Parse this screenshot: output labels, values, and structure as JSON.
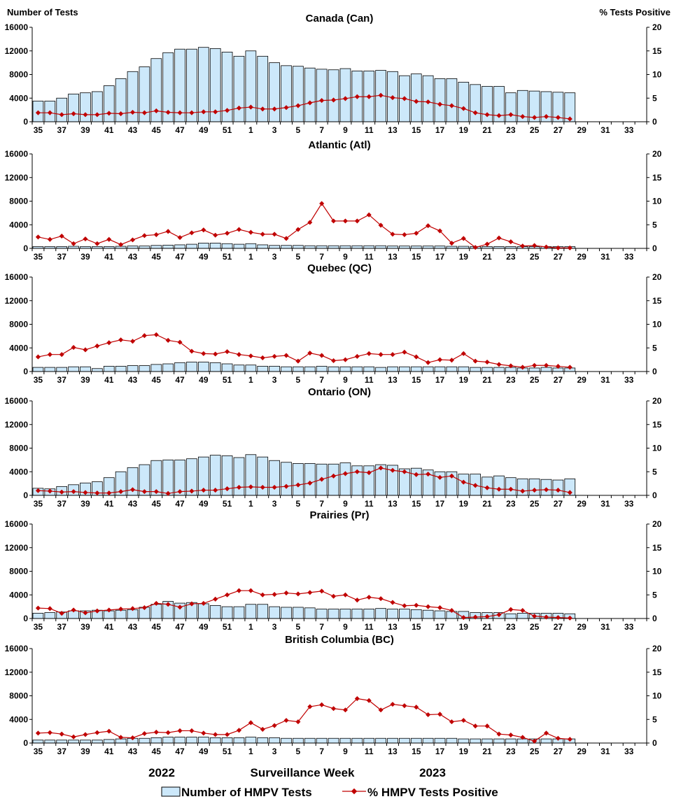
{
  "left_axis_title": "Number of Tests",
  "right_axis_title": "%  Tests Positive",
  "x_title": "Surveillance Week",
  "year_labels": [
    "2022",
    "2023"
  ],
  "legend": {
    "bars": "Number of HMPV Tests",
    "line": "% HMPV Tests Positive"
  },
  "colors": {
    "bar_fill": "#CCE8FA",
    "bar_stroke": "#000000",
    "line": "#C00000"
  },
  "chart_data": [
    {
      "type": "bar+line",
      "title": "Canada (Can)",
      "weeks": [
        35,
        36,
        37,
        38,
        39,
        40,
        41,
        42,
        43,
        44,
        45,
        46,
        47,
        48,
        49,
        50,
        51,
        52,
        1,
        2,
        3,
        4,
        5,
        6,
        7,
        8,
        9,
        10,
        11,
        12,
        13,
        14,
        15,
        16,
        17,
        18,
        19,
        20,
        21,
        22,
        23,
        24,
        25,
        26,
        27,
        28
      ],
      "week_ticks": [
        "35",
        "37",
        "39",
        "41",
        "43",
        "45",
        "47",
        "49",
        "51",
        "1",
        "3",
        "5",
        "7",
        "9",
        "11",
        "13",
        "15",
        "17",
        "19",
        "21",
        "23",
        "25",
        "27",
        "29",
        "31",
        "33"
      ],
      "y_left": [
        0,
        4000,
        8000,
        12000,
        16000
      ],
      "y_right": [
        0,
        5,
        10,
        15,
        20
      ],
      "tests": [
        3500,
        3500,
        4000,
        4700,
        4900,
        5100,
        6100,
        7300,
        8500,
        9300,
        10700,
        11700,
        12300,
        12300,
        12600,
        12400,
        11800,
        11100,
        12000,
        11100,
        10000,
        9500,
        9400,
        9100,
        8900,
        8800,
        9000,
        8600,
        8600,
        8700,
        8500,
        7800,
        8100,
        7800,
        7300,
        7300,
        6700,
        6300,
        6000,
        6000,
        4900,
        5300,
        5200,
        5100,
        5000,
        4900
      ],
      "percent": [
        1.9,
        1.9,
        1.5,
        1.7,
        1.5,
        1.5,
        1.8,
        1.7,
        2.0,
        1.9,
        2.3,
        2.0,
        1.9,
        1.9,
        2.1,
        2.1,
        2.4,
        2.9,
        3.1,
        2.7,
        2.7,
        3.0,
        3.4,
        4.0,
        4.5,
        4.6,
        4.9,
        5.3,
        5.3,
        5.6,
        5.1,
        4.9,
        4.3,
        4.2,
        3.7,
        3.4,
        2.8,
        1.9,
        1.5,
        1.3,
        1.5,
        1.1,
        0.9,
        1.1,
        0.9,
        0.6
      ]
    },
    {
      "type": "bar+line",
      "title": "Atlantic (Atl)",
      "weeks": [
        35,
        36,
        37,
        38,
        39,
        40,
        41,
        42,
        43,
        44,
        45,
        46,
        47,
        48,
        49,
        50,
        51,
        52,
        1,
        2,
        3,
        4,
        5,
        6,
        7,
        8,
        9,
        10,
        11,
        12,
        13,
        14,
        15,
        16,
        17,
        18,
        19,
        20,
        21,
        22,
        23,
        24,
        25,
        26,
        27,
        28
      ],
      "week_ticks": [
        "35",
        "37",
        "39",
        "41",
        "43",
        "45",
        "47",
        "49",
        "51",
        "1",
        "3",
        "5",
        "7",
        "9",
        "11",
        "13",
        "15",
        "17",
        "19",
        "21",
        "23",
        "25",
        "27",
        "29",
        "31",
        "33"
      ],
      "y_left": [
        0,
        4000,
        8000,
        12000,
        16000
      ],
      "y_right": [
        0,
        5,
        10,
        15,
        20
      ],
      "tests": [
        300,
        300,
        300,
        350,
        300,
        300,
        300,
        350,
        400,
        400,
        500,
        550,
        600,
        700,
        900,
        900,
        800,
        700,
        800,
        600,
        500,
        500,
        500,
        450,
        450,
        450,
        450,
        450,
        450,
        450,
        400,
        400,
        400,
        400,
        400,
        350,
        350,
        300,
        300,
        300,
        300,
        300,
        300,
        300,
        300,
        300
      ],
      "percent": [
        2.4,
        1.9,
        2.6,
        1.0,
        2.0,
        1.0,
        1.9,
        0.8,
        1.8,
        2.7,
        2.9,
        3.6,
        2.3,
        3.3,
        3.9,
        2.8,
        3.2,
        4.0,
        3.4,
        3.0,
        3.0,
        2.1,
        4.0,
        5.5,
        9.5,
        5.8,
        5.8,
        5.8,
        7.1,
        4.9,
        3.0,
        2.9,
        3.2,
        4.8,
        3.7,
        1.1,
        2.1,
        0.2,
        0.9,
        2.2,
        1.4,
        0.5,
        0.6,
        0.3,
        0.1,
        0.1
      ]
    },
    {
      "type": "bar+line",
      "title": "Quebec (QC)",
      "weeks": [
        35,
        36,
        37,
        38,
        39,
        40,
        41,
        42,
        43,
        44,
        45,
        46,
        47,
        48,
        49,
        50,
        51,
        52,
        1,
        2,
        3,
        4,
        5,
        6,
        7,
        8,
        9,
        10,
        11,
        12,
        13,
        14,
        15,
        16,
        17,
        18,
        19,
        20,
        21,
        22,
        23,
        24,
        25,
        26,
        27,
        28
      ],
      "week_ticks": [
        "35",
        "37",
        "39",
        "41",
        "43",
        "45",
        "47",
        "49",
        "51",
        "1",
        "3",
        "5",
        "7",
        "9",
        "11",
        "13",
        "15",
        "17",
        "19",
        "21",
        "23",
        "25",
        "27",
        "29",
        "31",
        "33"
      ],
      "y_left": [
        0,
        4000,
        8000,
        12000,
        16000
      ],
      "y_right": [
        0,
        5,
        10,
        15,
        20
      ],
      "tests": [
        700,
        700,
        700,
        800,
        800,
        500,
        900,
        900,
        1000,
        1000,
        1200,
        1300,
        1500,
        1600,
        1600,
        1500,
        1300,
        1100,
        1100,
        900,
        900,
        800,
        800,
        800,
        900,
        800,
        800,
        800,
        800,
        700,
        800,
        800,
        800,
        800,
        800,
        800,
        800,
        700,
        700,
        700,
        700,
        600,
        600,
        700,
        600,
        600
      ],
      "percent": [
        3.1,
        3.6,
        3.6,
        5.1,
        4.6,
        5.4,
        6.1,
        6.7,
        6.4,
        7.6,
        7.8,
        6.6,
        6.2,
        4.3,
        3.8,
        3.7,
        4.2,
        3.6,
        3.3,
        2.9,
        3.2,
        3.4,
        2.2,
        3.9,
        3.4,
        2.3,
        2.5,
        3.2,
        3.8,
        3.6,
        3.6,
        4.1,
        3.1,
        1.9,
        2.5,
        2.4,
        3.8,
        2.2,
        2.0,
        1.5,
        1.2,
        0.9,
        1.3,
        1.3,
        1.1,
        0.9
      ]
    },
    {
      "type": "bar+line",
      "title": "Ontario (ON)",
      "weeks": [
        35,
        36,
        37,
        38,
        39,
        40,
        41,
        42,
        43,
        44,
        45,
        46,
        47,
        48,
        49,
        50,
        51,
        52,
        1,
        2,
        3,
        4,
        5,
        6,
        7,
        8,
        9,
        10,
        11,
        12,
        13,
        14,
        15,
        16,
        17,
        18,
        19,
        20,
        21,
        22,
        23,
        24,
        25,
        26,
        27,
        28
      ],
      "week_ticks": [
        "35",
        "37",
        "39",
        "41",
        "43",
        "45",
        "47",
        "49",
        "51",
        "1",
        "3",
        "5",
        "7",
        "9",
        "11",
        "13",
        "15",
        "17",
        "19",
        "21",
        "23",
        "25",
        "27",
        "29",
        "31",
        "33"
      ],
      "y_left": [
        0,
        4000,
        8000,
        12000,
        16000
      ],
      "y_right": [
        0,
        5,
        10,
        15,
        20
      ],
      "tests": [
        1200,
        1100,
        1500,
        1800,
        2100,
        2300,
        3000,
        4000,
        4700,
        5200,
        5900,
        6000,
        6000,
        6200,
        6500,
        6800,
        6700,
        6400,
        6900,
        6500,
        5900,
        5600,
        5400,
        5400,
        5300,
        5300,
        5500,
        5000,
        5000,
        5200,
        5100,
        4500,
        4600,
        4300,
        4000,
        4000,
        3600,
        3600,
        3100,
        3300,
        3000,
        2800,
        2800,
        2700,
        2600,
        2800
      ],
      "percent": [
        1.0,
        0.9,
        0.7,
        0.8,
        0.6,
        0.5,
        0.5,
        0.8,
        1.2,
        0.8,
        0.8,
        0.4,
        0.8,
        0.9,
        1.1,
        1.1,
        1.4,
        1.7,
        1.8,
        1.7,
        1.7,
        1.9,
        2.2,
        2.6,
        3.4,
        4.1,
        4.6,
        5.0,
        4.8,
        5.8,
        5.3,
        5.0,
        4.4,
        4.5,
        3.8,
        4.1,
        2.8,
        2.1,
        1.6,
        1.3,
        1.3,
        0.9,
        1.1,
        1.2,
        1.1,
        0.6
      ]
    },
    {
      "type": "bar+line",
      "title": "Prairies (Pr)",
      "weeks": [
        35,
        36,
        37,
        38,
        39,
        40,
        41,
        42,
        43,
        44,
        45,
        46,
        47,
        48,
        49,
        50,
        51,
        52,
        1,
        2,
        3,
        4,
        5,
        6,
        7,
        8,
        9,
        10,
        11,
        12,
        13,
        14,
        15,
        16,
        17,
        18,
        19,
        20,
        21,
        22,
        23,
        24,
        25,
        26,
        27,
        28
      ],
      "week_ticks": [
        "35",
        "37",
        "39",
        "41",
        "43",
        "45",
        "47",
        "49",
        "51",
        "1",
        "3",
        "5",
        "7",
        "9",
        "11",
        "13",
        "15",
        "17",
        "19",
        "21",
        "23",
        "25",
        "27",
        "29",
        "31",
        "33"
      ],
      "y_left": [
        0,
        4000,
        8000,
        12000,
        16000
      ],
      "y_right": [
        0,
        5,
        10,
        15,
        20
      ],
      "tests": [
        900,
        1000,
        1100,
        1300,
        1300,
        1400,
        1300,
        1400,
        1500,
        1900,
        2400,
        2900,
        2600,
        2700,
        2500,
        2200,
        2000,
        2000,
        2400,
        2400,
        2000,
        1900,
        1900,
        1800,
        1600,
        1600,
        1600,
        1600,
        1600,
        1700,
        1600,
        1600,
        1500,
        1400,
        1300,
        1200,
        1200,
        1000,
        1000,
        1000,
        800,
        900,
        900,
        900,
        900,
        800
      ],
      "percent": [
        2.2,
        2.1,
        1.1,
        1.8,
        1.2,
        1.6,
        1.8,
        2.0,
        2.1,
        2.3,
        3.2,
        3.0,
        2.4,
        3.1,
        3.2,
        4.1,
        5.0,
        5.9,
        5.9,
        5.0,
        5.1,
        5.4,
        5.2,
        5.5,
        5.8,
        4.7,
        5.0,
        3.9,
        4.5,
        4.2,
        3.4,
        2.7,
        2.8,
        2.5,
        2.3,
        1.7,
        0.2,
        0.3,
        0.4,
        0.8,
        1.9,
        1.7,
        0.5,
        0.3,
        0.2,
        0.1
      ]
    },
    {
      "type": "bar+line",
      "title": "British Columbia (BC)",
      "weeks": [
        35,
        36,
        37,
        38,
        39,
        40,
        41,
        42,
        43,
        44,
        45,
        46,
        47,
        48,
        49,
        50,
        51,
        52,
        1,
        2,
        3,
        4,
        5,
        6,
        7,
        8,
        9,
        10,
        11,
        12,
        13,
        14,
        15,
        16,
        17,
        18,
        19,
        20,
        21,
        22,
        23,
        24,
        25,
        26,
        27,
        28
      ],
      "week_ticks": [
        "35",
        "37",
        "39",
        "41",
        "43",
        "45",
        "47",
        "49",
        "51",
        "1",
        "3",
        "5",
        "7",
        "9",
        "11",
        "13",
        "15",
        "17",
        "19",
        "21",
        "23",
        "25",
        "27",
        "29",
        "31",
        "33"
      ],
      "y_left": [
        0,
        4000,
        8000,
        12000,
        16000
      ],
      "y_right": [
        0,
        5,
        10,
        15,
        20
      ],
      "tests": [
        500,
        500,
        500,
        500,
        500,
        500,
        600,
        700,
        800,
        800,
        900,
        1000,
        1000,
        1000,
        1000,
        900,
        900,
        900,
        1000,
        900,
        900,
        800,
        800,
        800,
        800,
        800,
        800,
        800,
        800,
        800,
        800,
        800,
        800,
        800,
        800,
        800,
        700,
        700,
        700,
        700,
        700,
        700,
        700,
        700,
        700,
        700
      ],
      "percent": [
        2.1,
        2.2,
        1.9,
        1.3,
        1.8,
        2.2,
        2.5,
        1.2,
        1.1,
        2.0,
        2.3,
        2.2,
        2.6,
        2.6,
        2.1,
        1.8,
        1.8,
        2.7,
        4.3,
        2.9,
        3.7,
        4.8,
        4.5,
        7.7,
        8.1,
        7.3,
        7.0,
        9.4,
        9.0,
        7.0,
        8.2,
        7.9,
        7.6,
        6.0,
        6.1,
        4.5,
        4.8,
        3.6,
        3.6,
        1.9,
        1.7,
        1.2,
        0.4,
        2.1,
        1.0,
        0.8
      ]
    }
  ]
}
